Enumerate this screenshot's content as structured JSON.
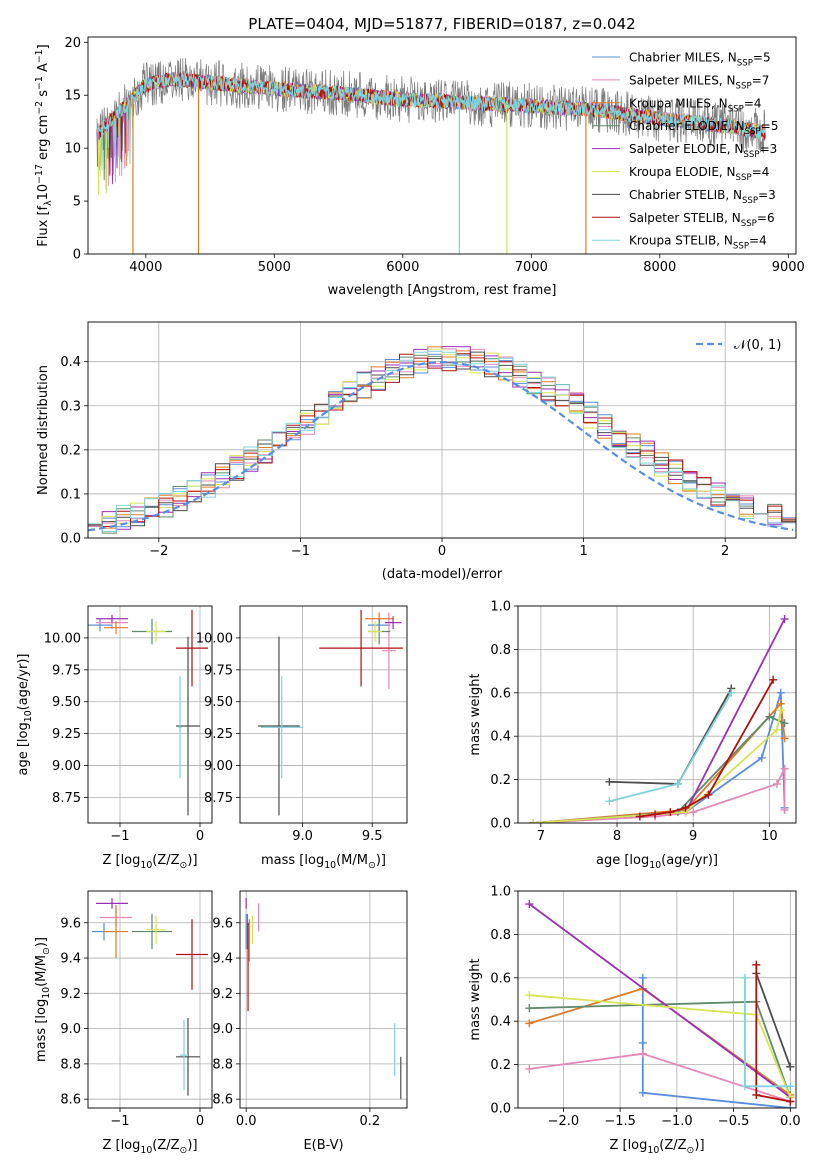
{
  "colors": {
    "series": [
      "#5b8ddf",
      "#e389b8",
      "#e07b28",
      "#5f8a6b",
      "#9b30b5",
      "#d7e453",
      "#4d4d4d",
      "#b01010",
      "#7fd3dc"
    ],
    "gauss": "#5b8ddf",
    "grid": "#b0b0b0"
  },
  "chart_data": [
    {
      "id": "spectrum",
      "type": "line",
      "title": "PLATE=0404, MJD=51877, FIBERID=0187, z=0.042",
      "xlabel": "wavelength [Angstrom, rest frame]",
      "ylabel": "Flux [f_λ10^-17 erg cm^-2 s^-1 A^-1]",
      "xlim": [
        3550,
        9060
      ],
      "ylim": [
        0,
        20.5
      ],
      "xticks": [
        4000,
        5000,
        6000,
        7000,
        8000,
        9000
      ],
      "yticks": [
        0,
        5,
        10,
        15,
        20
      ],
      "grid": false,
      "legend_position": "upper right",
      "series": [
        {
          "name": "Chabrier MILES, N_SSP=5"
        },
        {
          "name": "Salpeter MILES, N_SSP=7"
        },
        {
          "name": "Kroupa MILES, N_SSP=4"
        },
        {
          "name": "Chabrier ELODIE, N_SSP=5"
        },
        {
          "name": "Salpeter ELODIE, N_SSP=3"
        },
        {
          "name": "Kroupa ELODIE, N_SSP=4"
        },
        {
          "name": "Chabrier STELIB, N_SSP=3"
        },
        {
          "name": "Salpeter STELIB, N_SSP=6"
        },
        {
          "name": "Kroupa STELIB, N_SSP=4"
        }
      ],
      "continuum": {
        "x": [
          3600,
          3800,
          4000,
          4200,
          4500,
          5000,
          5500,
          6000,
          6500,
          7000,
          7500,
          8000,
          8500,
          8800
        ],
        "y": [
          11,
          13.5,
          16,
          16.5,
          16.2,
          15.6,
          15.2,
          14.6,
          14.3,
          14.0,
          13.6,
          12.8,
          12.1,
          11.5
        ]
      },
      "dropouts": [
        {
          "x": 3900,
          "color_index": 2
        },
        {
          "x": 4410,
          "color_index": 2
        },
        {
          "x": 6440,
          "color_index": 8
        },
        {
          "x": 6810,
          "color_index": 5
        },
        {
          "x": 7425,
          "color_index": 2
        }
      ]
    },
    {
      "id": "residuals",
      "type": "line",
      "xlabel": "(data-model)/error",
      "ylabel": "Normed distribution",
      "xlim": [
        -2.5,
        2.5
      ],
      "ylim": [
        0,
        0.49
      ],
      "xticks": [
        -2,
        -1,
        0,
        1,
        2
      ],
      "yticks": [
        0.0,
        0.1,
        0.2,
        0.3,
        0.4
      ],
      "grid": true,
      "legend_position": "upper right",
      "gauss_label": "𝒩(0, 1)"
    },
    {
      "id": "age_vs_Z",
      "type": "scatter",
      "xlabel": "Z [log10(Z/Z⊙)]",
      "ylabel": "age  [log10(age/yr)]",
      "xlim": [
        -1.4,
        0.15
      ],
      "ylim": [
        8.55,
        10.25
      ],
      "xticks": [
        -1,
        0
      ],
      "yticks": [
        8.75,
        9.0,
        9.25,
        9.5,
        9.75,
        10.0
      ],
      "ytick_labels": [
        "8.75",
        "9.00",
        "9.25",
        "9.50",
        "9.75",
        "10.00"
      ],
      "grid": true,
      "points": [
        {
          "ci": 0,
          "x": -1.25,
          "y": 10.1,
          "xerr": 0.15,
          "yerr": 0.05
        },
        {
          "ci": 1,
          "x": -1.1,
          "y": 10.12,
          "xerr": 0.2,
          "yerr": 0.05
        },
        {
          "ci": 2,
          "x": -1.05,
          "y": 10.08,
          "xerr": 0.15,
          "yerr": 0.05
        },
        {
          "ci": 3,
          "x": -0.6,
          "y": 10.05,
          "xerr": 0.25,
          "yerr": 0.1
        },
        {
          "ci": 4,
          "x": -1.1,
          "y": 10.15,
          "xerr": 0.2,
          "yerr": 0.03
        },
        {
          "ci": 5,
          "x": -0.55,
          "y": 10.05,
          "xerr": 0.12,
          "yerr": 0.08
        },
        {
          "ci": 6,
          "x": -0.15,
          "y": 9.31,
          "xerr": 0.15,
          "yerr": 0.7
        },
        {
          "ci": 7,
          "x": -0.1,
          "y": 9.92,
          "xerr": 0.2,
          "yerr": 0.3
        },
        {
          "ci": 8,
          "x": -0.25,
          "y": 9.3,
          "xerr": 0.02,
          "yerr": 0.4
        }
      ]
    },
    {
      "id": "age_vs_mass",
      "type": "scatter",
      "xlabel": "mass [log10(M/M⊙)]",
      "ylabel": "",
      "xlim": [
        8.55,
        9.75
      ],
      "ylim": [
        8.55,
        10.25
      ],
      "xticks": [
        9.0,
        9.5
      ],
      "yticks": [
        8.75,
        9.0,
        9.25,
        9.5,
        9.75,
        10.0
      ],
      "ytick_labels": [
        "8.75",
        "9.00",
        "9.25",
        "9.50",
        "9.75",
        "10.00"
      ],
      "grid": true,
      "points": [
        {
          "ci": 0,
          "x": 9.55,
          "y": 10.1,
          "xerr": 0.08,
          "yerr": 0.05
        },
        {
          "ci": 1,
          "x": 9.62,
          "y": 9.9,
          "xerr": 0.05,
          "yerr": 0.3
        },
        {
          "ci": 2,
          "x": 9.55,
          "y": 10.15,
          "xerr": 0.1,
          "yerr": 0.05
        },
        {
          "ci": 3,
          "x": 9.55,
          "y": 10.05,
          "xerr": 0.08,
          "yerr": 0.1
        },
        {
          "ci": 4,
          "x": 9.65,
          "y": 10.12,
          "xerr": 0.06,
          "yerr": 0.05
        },
        {
          "ci": 5,
          "x": 9.52,
          "y": 10.05,
          "xerr": 0.05,
          "yerr": 0.08
        },
        {
          "ci": 6,
          "x": 8.83,
          "y": 9.31,
          "xerr": 0.15,
          "yerr": 0.7
        },
        {
          "ci": 7,
          "x": 9.42,
          "y": 9.92,
          "xerr": 0.3,
          "yerr": 0.3
        },
        {
          "ci": 8,
          "x": 8.85,
          "y": 9.3,
          "xerr": 0.15,
          "yerr": 0.4
        }
      ]
    },
    {
      "id": "weight_vs_age",
      "type": "line",
      "xlabel": "age  [log10(age/yr)]",
      "ylabel": "mass weight",
      "xlim": [
        6.7,
        10.35
      ],
      "ylim": [
        0,
        1.0
      ],
      "xticks": [
        7,
        8,
        9,
        10
      ],
      "yticks": [
        0.0,
        0.2,
        0.4,
        0.6,
        0.8,
        1.0
      ],
      "grid": true,
      "series": [
        {
          "ci": 0,
          "x": [
            6.9,
            8.9,
            9.9,
            10.15,
            10.2
          ],
          "y": [
            0.0,
            0.05,
            0.3,
            0.6,
            0.07
          ]
        },
        {
          "ci": 1,
          "x": [
            6.9,
            8.5,
            9.0,
            10.1,
            10.2,
            10.2,
            10.2
          ],
          "y": [
            0.0,
            0.03,
            0.05,
            0.18,
            0.25,
            0.06,
            0.25
          ]
        },
        {
          "ci": 2,
          "x": [
            6.9,
            8.9,
            10.15,
            10.2
          ],
          "y": [
            0.0,
            0.06,
            0.55,
            0.39
          ]
        },
        {
          "ci": 3,
          "x": [
            6.9,
            8.8,
            10.0,
            10.2
          ],
          "y": [
            0.0,
            0.05,
            0.49,
            0.46
          ]
        },
        {
          "ci": 4,
          "x": [
            6.9,
            8.9,
            10.2
          ],
          "y": [
            0.0,
            0.05,
            0.94
          ]
        },
        {
          "ci": 5,
          "x": [
            6.9,
            8.9,
            10.1,
            10.15
          ],
          "y": [
            0.0,
            0.05,
            0.43,
            0.52
          ]
        },
        {
          "ci": 6,
          "x": [
            7.9,
            8.8,
            9.5
          ],
          "y": [
            0.19,
            0.18,
            0.62
          ]
        },
        {
          "ci": 7,
          "x": [
            8.3,
            8.5,
            8.7,
            8.9,
            9.2,
            10.05
          ],
          "y": [
            0.03,
            0.04,
            0.05,
            0.07,
            0.13,
            0.66
          ]
        },
        {
          "ci": 8,
          "x": [
            7.9,
            8.8,
            9.5
          ],
          "y": [
            0.1,
            0.18,
            0.6
          ]
        }
      ]
    },
    {
      "id": "mass_vs_Z",
      "type": "scatter",
      "xlabel": "Z [log10(Z/Z⊙)]",
      "ylabel": "mass [log10(M/M⊙)]",
      "xlim": [
        -1.4,
        0.15
      ],
      "ylim": [
        8.55,
        9.78
      ],
      "xticks": [
        -1,
        0
      ],
      "yticks": [
        8.6,
        8.8,
        9.0,
        9.2,
        9.4,
        9.6
      ],
      "grid": true,
      "points": [
        {
          "ci": 0,
          "x": -1.2,
          "y": 9.55,
          "xerr": 0.15,
          "yerr": 0.05
        },
        {
          "ci": 1,
          "x": -1.05,
          "y": 9.63,
          "xerr": 0.2,
          "yerr": 0.05
        },
        {
          "ci": 2,
          "x": -1.05,
          "y": 9.55,
          "xerr": 0.15,
          "yerr": 0.15
        },
        {
          "ci": 3,
          "x": -0.6,
          "y": 9.55,
          "xerr": 0.25,
          "yerr": 0.1
        },
        {
          "ci": 4,
          "x": -1.1,
          "y": 9.71,
          "xerr": 0.2,
          "yerr": 0.03
        },
        {
          "ci": 5,
          "x": -0.55,
          "y": 9.56,
          "xerr": 0.12,
          "yerr": 0.08
        },
        {
          "ci": 6,
          "x": -0.15,
          "y": 8.84,
          "xerr": 0.15,
          "yerr": 0.22
        },
        {
          "ci": 7,
          "x": -0.1,
          "y": 9.42,
          "xerr": 0.2,
          "yerr": 0.2
        },
        {
          "ci": 8,
          "x": -0.2,
          "y": 8.85,
          "xerr": 0.05,
          "yerr": 0.2
        }
      ]
    },
    {
      "id": "mass_vs_ebv",
      "type": "scatter",
      "xlabel": "E(B-V)",
      "ylabel": "",
      "xlim": [
        -0.01,
        0.26
      ],
      "ylim": [
        8.55,
        9.78
      ],
      "xticks": [
        0.0,
        0.2
      ],
      "yticks": [
        8.6,
        8.8,
        9.0,
        9.2,
        9.4,
        9.6
      ],
      "grid": true,
      "points": [
        {
          "ci": 0,
          "x": 0.0,
          "y": 9.55,
          "xerr": 0.0,
          "yerr": 0.1
        },
        {
          "ci": 1,
          "x": 0.02,
          "y": 9.63,
          "xerr": 0.0,
          "yerr": 0.08
        },
        {
          "ci": 2,
          "x": 0.005,
          "y": 9.5,
          "xerr": 0.0,
          "yerr": 0.12
        },
        {
          "ci": 3,
          "x": 0.002,
          "y": 9.55,
          "xerr": 0.0,
          "yerr": 0.1
        },
        {
          "ci": 4,
          "x": 0.0,
          "y": 9.71,
          "xerr": 0.0,
          "yerr": 0.03
        },
        {
          "ci": 5,
          "x": 0.01,
          "y": 9.56,
          "xerr": 0.0,
          "yerr": 0.08
        },
        {
          "ci": 6,
          "x": 0.25,
          "y": 8.72,
          "xerr": 0.0,
          "yerr": 0.12
        },
        {
          "ci": 7,
          "x": 0.003,
          "y": 9.35,
          "xerr": 0.0,
          "yerr": 0.25
        },
        {
          "ci": 8,
          "x": 0.24,
          "y": 8.88,
          "xerr": 0.0,
          "yerr": 0.15
        }
      ]
    },
    {
      "id": "weight_vs_Z",
      "type": "line",
      "xlabel": "Z [log10(Z/Z⊙)]",
      "ylabel": "mass weight",
      "xlim": [
        -2.4,
        0.05
      ],
      "ylim": [
        0,
        1.0
      ],
      "xticks": [
        -2.0,
        -1.5,
        -1.0,
        -0.5,
        0.0
      ],
      "yticks": [
        0.0,
        0.2,
        0.4,
        0.6,
        0.8,
        1.0
      ],
      "grid": true,
      "series": [
        {
          "ci": 0,
          "x": [
            -1.3,
            -1.3,
            -1.3,
            0.0
          ],
          "y": [
            0.6,
            0.3,
            0.07,
            0.0
          ]
        },
        {
          "ci": 1,
          "x": [
            -2.3,
            -1.3,
            0.0
          ],
          "y": [
            0.18,
            0.25,
            0.03
          ]
        },
        {
          "ci": 2,
          "x": [
            -2.3,
            -1.3,
            0.0
          ],
          "y": [
            0.39,
            0.55,
            0.06
          ]
        },
        {
          "ci": 3,
          "x": [
            -2.3,
            -0.3,
            0.0
          ],
          "y": [
            0.46,
            0.49,
            0.05
          ]
        },
        {
          "ci": 4,
          "x": [
            -2.3,
            0.0
          ],
          "y": [
            0.94,
            0.05
          ]
        },
        {
          "ci": 5,
          "x": [
            -2.3,
            -0.3,
            0.0
          ],
          "y": [
            0.52,
            0.43,
            0.05
          ]
        },
        {
          "ci": 6,
          "x": [
            -0.3,
            0.0,
            0.0
          ],
          "y": [
            0.62,
            0.19,
            0.19
          ]
        },
        {
          "ci": 7,
          "x": [
            -0.3,
            -0.3,
            0.0
          ],
          "y": [
            0.66,
            0.06,
            0.03
          ]
        },
        {
          "ci": 8,
          "x": [
            -0.4,
            -0.4,
            0.0
          ],
          "y": [
            0.6,
            0.1,
            0.1
          ]
        }
      ]
    }
  ]
}
